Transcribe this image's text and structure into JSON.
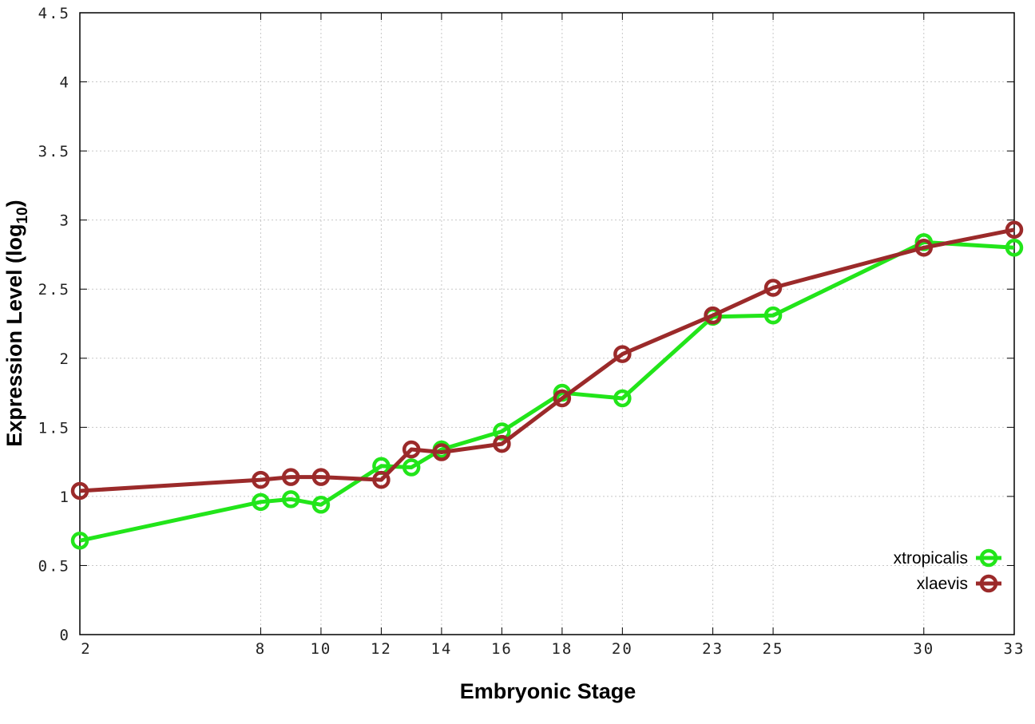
{
  "chart_data": {
    "type": "line",
    "title": "",
    "xlabel": "Embryonic Stage",
    "ylabel": "Expression Level (log",
    "ylabel_sub": "10",
    "ylabel_end": ")",
    "xlim": [
      2,
      33
    ],
    "ylim": [
      0,
      4.5
    ],
    "x_ticks": [
      2,
      8,
      10,
      12,
      14,
      16,
      18,
      20,
      23,
      25,
      30,
      33
    ],
    "y_ticks": [
      "0",
      "0.5",
      "1",
      "1.5",
      "2",
      "2.5",
      "3",
      "3.5",
      "4",
      "4.5"
    ],
    "grid": true,
    "legend_position": "bottom-right",
    "x": [
      2,
      8,
      9,
      10,
      12,
      13,
      14,
      16,
      18,
      20,
      23,
      25,
      30,
      33
    ],
    "series": [
      {
        "name": "xtropicalis",
        "color": "#22e51a",
        "values": [
          0.68,
          0.96,
          0.98,
          0.94,
          1.22,
          1.21,
          1.34,
          1.47,
          1.75,
          1.71,
          2.3,
          2.31,
          2.84,
          2.8
        ]
      },
      {
        "name": "xlaevis",
        "color": "#9b2a2a",
        "values": [
          1.04,
          1.12,
          1.14,
          1.14,
          1.12,
          1.34,
          1.32,
          1.38,
          1.71,
          2.03,
          2.31,
          2.51,
          2.8,
          2.93
        ]
      }
    ]
  }
}
